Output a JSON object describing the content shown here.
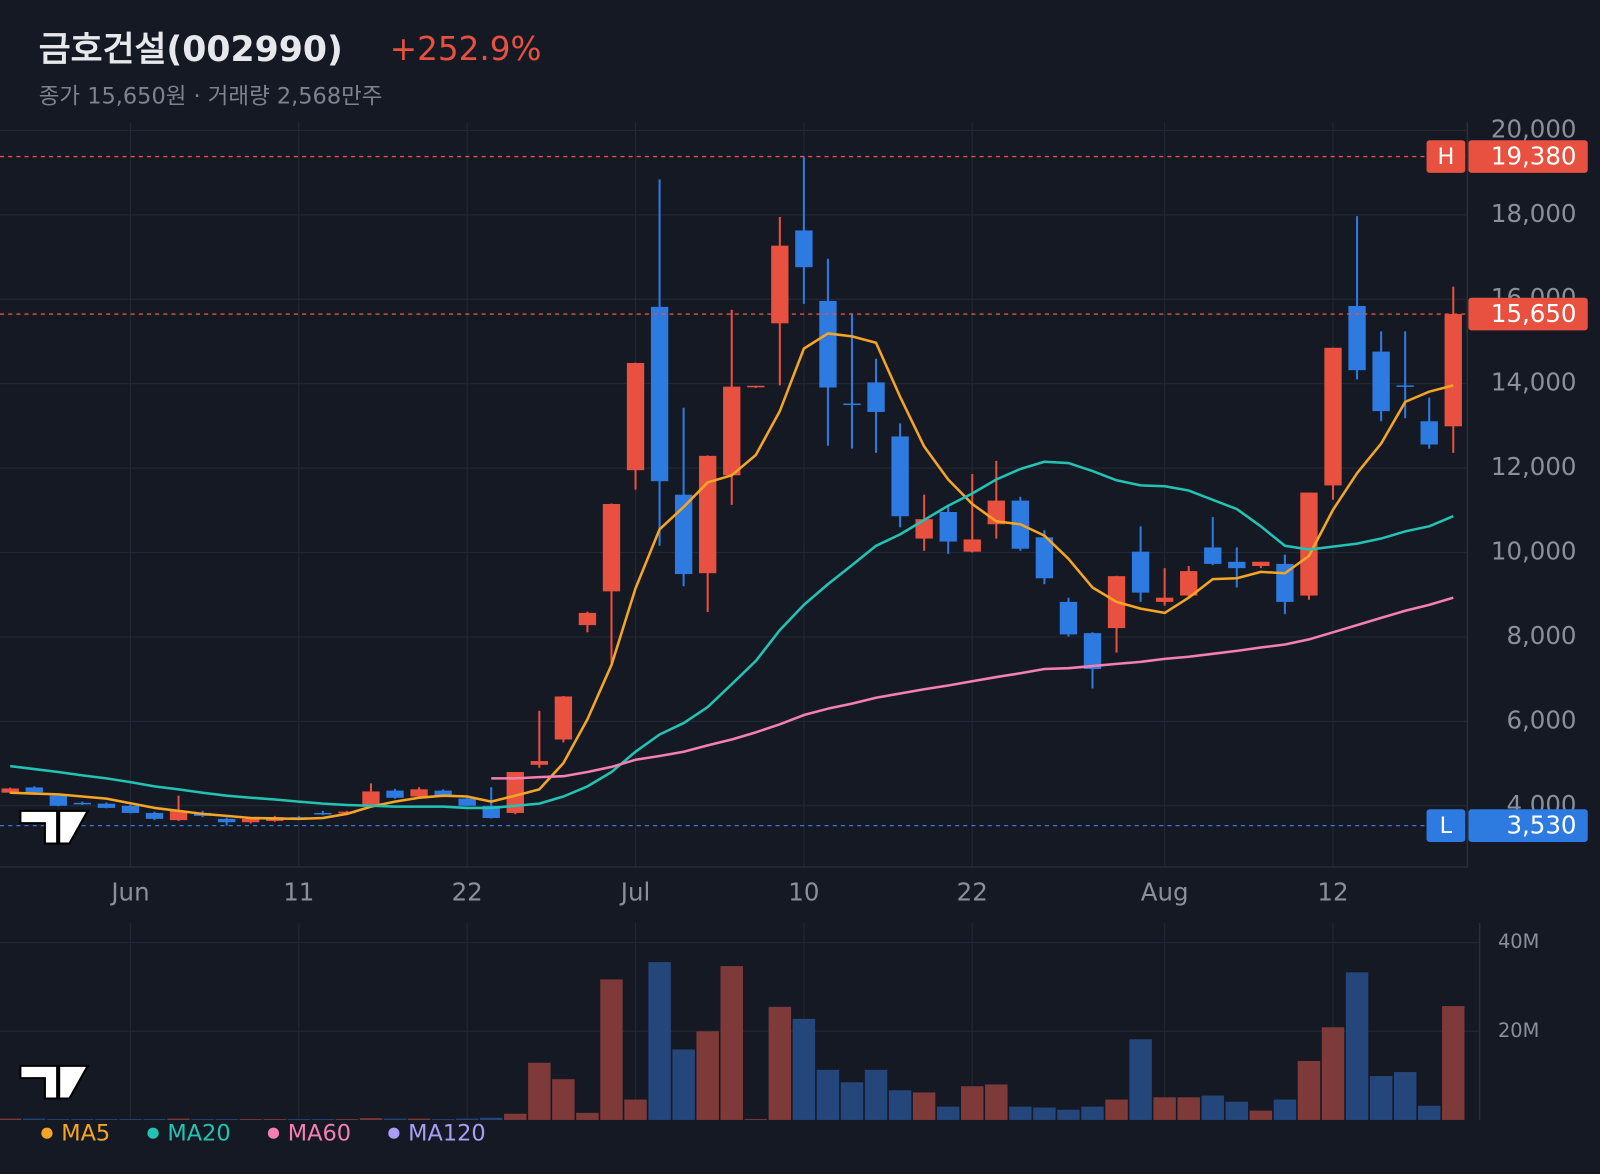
{
  "header": {
    "title": "금호건설(002990)",
    "change": "+252.9%",
    "subtitle": "종가 15,650원 · 거래량 2,568만주"
  },
  "chart_data": [
    {
      "type": "candlestick",
      "categories": [
        null,
        null,
        null,
        null,
        null,
        "Jun",
        null,
        null,
        null,
        null,
        null,
        null,
        "11",
        null,
        null,
        null,
        null,
        null,
        null,
        "22",
        null,
        null,
        null,
        null,
        null,
        null,
        "Jul",
        null,
        null,
        null,
        null,
        null,
        null,
        "10",
        null,
        null,
        null,
        null,
        null,
        null,
        "22",
        null,
        null,
        null,
        null,
        null,
        null,
        null,
        "Aug",
        null,
        null,
        null,
        null,
        null,
        null,
        "12",
        null,
        null,
        null,
        null,
        null
      ],
      "open": [
        4310,
        4435,
        4240,
        4070,
        4050,
        4000,
        3830,
        3660,
        3830,
        3690,
        3610,
        3640,
        3730,
        3830,
        3850,
        4020,
        4360,
        4220,
        4360,
        4170,
        4000,
        3830,
        4970,
        5570,
        8280,
        9080,
        11950,
        15820,
        11370,
        9510,
        11830,
        13930,
        15430,
        17630,
        15960,
        13530,
        14030,
        12750,
        10330,
        10960,
        10020,
        10670,
        11230,
        10360,
        8830,
        8090,
        8210,
        10020,
        8830,
        8980,
        10120,
        9780,
        9680,
        9730,
        8980,
        11590,
        15840,
        14760,
        13960,
        13110,
        12990
      ],
      "high": [
        4430,
        4460,
        4260,
        4100,
        4080,
        4020,
        3860,
        4240,
        3880,
        3720,
        3700,
        3760,
        3760,
        3880,
        3880,
        4530,
        4400,
        4440,
        4390,
        4240,
        4440,
        4800,
        6250,
        6600,
        8600,
        11160,
        14500,
        18840,
        13430,
        12300,
        15750,
        13950,
        17950,
        19380,
        16960,
        15670,
        14590,
        13060,
        11370,
        11110,
        11860,
        12170,
        11320,
        10530,
        8930,
        8110,
        9450,
        10620,
        9630,
        9680,
        10840,
        10120,
        9780,
        9950,
        11420,
        14850,
        17970,
        15240,
        15240,
        13670,
        16300
      ],
      "low": [
        4290,
        4310,
        3990,
        4020,
        3940,
        3820,
        3660,
        3640,
        3730,
        3530,
        3580,
        3620,
        3700,
        3780,
        3830,
        4000,
        4170,
        4200,
        4220,
        4000,
        3700,
        3800,
        4900,
        5500,
        8110,
        7380,
        11490,
        10160,
        9200,
        8590,
        11130,
        13900,
        13960,
        15890,
        12530,
        12460,
        12360,
        10600,
        10040,
        9970,
        10000,
        10330,
        10040,
        9250,
        8010,
        6780,
        7630,
        8830,
        8740,
        8910,
        9700,
        9170,
        9630,
        8540,
        8880,
        11250,
        14100,
        13110,
        13180,
        12460,
        12360
      ],
      "close": [
        4410,
        4320,
        4000,
        4050,
        3950,
        3830,
        3690,
        3880,
        3760,
        3610,
        3690,
        3730,
        3710,
        3800,
        3860,
        4340,
        4190,
        4390,
        4240,
        4000,
        3710,
        4800,
        5060,
        6590,
        8570,
        11150,
        14490,
        11690,
        9490,
        12290,
        13930,
        13950,
        17270,
        16760,
        13910,
        13520,
        13330,
        10860,
        10790,
        10260,
        10310,
        11230,
        10090,
        9390,
        8060,
        7240,
        9440,
        9050,
        8930,
        9560,
        9730,
        9630,
        9780,
        8830,
        11420,
        14850,
        14320,
        13350,
        13930,
        12560,
        15650
      ],
      "up_color": "#e8503f",
      "down_color": "#2d7be0",
      "ylim": [
        2550,
        20190
      ],
      "yticks": [
        {
          "value": 4000,
          "label": "4,000"
        },
        {
          "value": 6000,
          "label": "6,000"
        },
        {
          "value": 8000,
          "label": "8,000"
        },
        {
          "value": 10000,
          "label": "10,000"
        },
        {
          "value": 12000,
          "label": "12,000"
        },
        {
          "value": 14000,
          "label": "14,000"
        },
        {
          "value": 16000,
          "label": "16,000"
        },
        {
          "value": 18000,
          "label": "18,000"
        },
        {
          "value": 20000,
          "label": "20,000"
        }
      ],
      "moving_averages": [
        {
          "name": "MA5",
          "color": "#f5a524",
          "values": [
            4310,
            4290,
            4270,
            4220,
            4170,
            4060,
            3950,
            3880,
            3810,
            3760,
            3710,
            3700,
            3690,
            3710,
            3810,
            3980,
            4100,
            4190,
            4240,
            4220,
            4100,
            4240,
            4390,
            5010,
            6050,
            7340,
            9150,
            10550,
            11080,
            11660,
            11830,
            12310,
            13350,
            14830,
            15190,
            15120,
            14970,
            13690,
            12510,
            11730,
            11150,
            10740,
            10670,
            10400,
            9850,
            9170,
            8830,
            8670,
            8570,
            8930,
            9370,
            9390,
            9540,
            9510,
            9920,
            11010,
            11880,
            12580,
            13570,
            13810,
            13960
          ]
        },
        {
          "name": "MA20",
          "color": "#22c3b4",
          "values": [
            4940,
            4870,
            4800,
            4720,
            4650,
            4560,
            4460,
            4390,
            4310,
            4240,
            4190,
            4150,
            4100,
            4050,
            4020,
            4000,
            3980,
            3980,
            3980,
            3950,
            3950,
            4000,
            4050,
            4220,
            4460,
            4800,
            5280,
            5690,
            5960,
            6340,
            6880,
            7430,
            8160,
            8760,
            9250,
            9700,
            10160,
            10430,
            10770,
            11110,
            11400,
            11730,
            11980,
            12150,
            12120,
            11930,
            11710,
            11590,
            11570,
            11470,
            11250,
            11030,
            10620,
            10160,
            10070,
            10140,
            10210,
            10330,
            10500,
            10620,
            10860
          ]
        },
        {
          "name": "MA60",
          "color": "#f57fb1",
          "values": [
            null,
            null,
            null,
            null,
            null,
            null,
            null,
            null,
            null,
            null,
            null,
            null,
            null,
            null,
            null,
            null,
            null,
            null,
            null,
            null,
            4650,
            4650,
            4680,
            4700,
            4800,
            4920,
            5090,
            5180,
            5280,
            5430,
            5570,
            5740,
            5930,
            6150,
            6300,
            6420,
            6560,
            6660,
            6760,
            6850,
            6950,
            7050,
            7140,
            7240,
            7260,
            7310,
            7360,
            7410,
            7480,
            7530,
            7600,
            7670,
            7750,
            7820,
            7940,
            8110,
            8280,
            8450,
            8620,
            8760,
            8930
          ]
        },
        {
          "name": "MA120",
          "color": "#a99df5"
        }
      ],
      "price_lines": [
        {
          "label": "H",
          "value": 19380,
          "value_label": "19,380",
          "color": "#e8503f"
        },
        {
          "value": 15650,
          "value_label": "15,650",
          "color": "#e8503f"
        },
        {
          "label": "L",
          "value": 3530,
          "value_label": "3,530",
          "color": "#2d7be0"
        }
      ]
    },
    {
      "type": "bar",
      "values": [
        300000,
        300000,
        200000,
        200000,
        200000,
        200000,
        200000,
        300000,
        200000,
        200000,
        200000,
        200000,
        200000,
        200000,
        200000,
        400000,
        300000,
        300000,
        200000,
        300000,
        500000,
        1400000,
        12900000,
        9200000,
        1600000,
        31700000,
        4600000,
        35600000,
        15900000,
        20000000,
        34700000,
        200000,
        25500000,
        22800000,
        11300000,
        8500000,
        11300000,
        6700000,
        6200000,
        3000000,
        7600000,
        8000000,
        3000000,
        2800000,
        2300000,
        3000000,
        4600000,
        18200000,
        5100000,
        5100000,
        5500000,
        4100000,
        2100000,
        4600000,
        13300000,
        20900000,
        33300000,
        9900000,
        10800000,
        3200000,
        25680000
      ],
      "up_color": "#7e3a38",
      "down_color": "#24467a",
      "ylim": [
        0,
        44400000
      ],
      "yticks": [
        {
          "value": 20000000,
          "label": "20M"
        },
        {
          "value": 40000000,
          "label": "40M"
        }
      ]
    }
  ]
}
